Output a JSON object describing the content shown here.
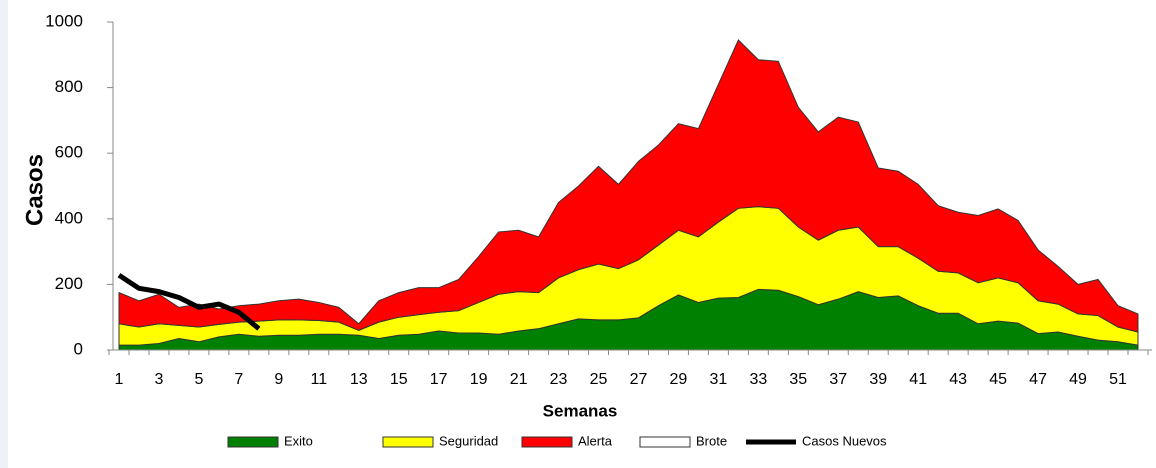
{
  "chart_data": {
    "type": "stacked_area",
    "xlabel": "Semanas",
    "ylabel": "Casos",
    "categories": [
      1,
      null,
      3,
      null,
      5,
      null,
      7,
      null,
      9,
      null,
      11,
      null,
      13,
      null,
      15,
      null,
      17,
      null,
      19,
      null,
      21,
      null,
      23,
      null,
      25,
      null,
      27,
      null,
      29,
      null,
      31,
      null,
      33,
      null,
      35,
      null,
      37,
      null,
      39,
      null,
      41,
      null,
      43,
      null,
      45,
      null,
      47,
      null,
      49,
      null,
      51,
      null
    ],
    "ylim": [
      0,
      1000
    ],
    "yticks": [
      0,
      200,
      400,
      600,
      800,
      1000
    ],
    "series": [
      {
        "name": "Exito",
        "color": "#008000",
        "values": [
          15,
          15,
          20,
          35,
          25,
          40,
          48,
          42,
          45,
          45,
          48,
          48,
          45,
          35,
          45,
          48,
          58,
          52,
          52,
          48,
          58,
          65,
          80,
          95,
          92,
          92,
          98,
          135,
          168,
          145,
          158,
          160,
          185,
          182,
          163,
          138,
          155,
          178,
          160,
          165,
          135,
          112,
          112,
          80,
          88,
          82,
          50,
          55,
          42,
          30,
          25,
          15
        ]
      },
      {
        "name": "Seguridad",
        "color": "#ffff00",
        "values": [
          65,
          55,
          60,
          40,
          45,
          38,
          37,
          46,
          47,
          47,
          42,
          37,
          15,
          50,
          55,
          60,
          57,
          68,
          93,
          122,
          120,
          110,
          140,
          150,
          170,
          156,
          177,
          185,
          197,
          200,
          232,
          272,
          252,
          250,
          212,
          197,
          210,
          197,
          155,
          150,
          145,
          128,
          123,
          125,
          132,
          123,
          100,
          85,
          68,
          75,
          45,
          40
        ]
      },
      {
        "name": "Alerta",
        "color": "#ff0000",
        "values": [
          95,
          80,
          90,
          55,
          70,
          47,
          50,
          52,
          58,
          63,
          55,
          45,
          20,
          65,
          75,
          82,
          75,
          95,
          140,
          190,
          187,
          170,
          230,
          255,
          298,
          257,
          300,
          305,
          325,
          330,
          420,
          513,
          448,
          448,
          365,
          330,
          345,
          320,
          240,
          230,
          225,
          200,
          185,
          205,
          210,
          190,
          155,
          115,
          90,
          110,
          65,
          55
        ]
      },
      {
        "name": "Brote",
        "color": "#ffffff",
        "values": [
          null,
          null,
          null,
          null,
          null,
          null,
          null,
          null,
          null,
          null,
          null,
          null,
          null,
          null,
          null,
          null,
          null,
          null,
          null,
          null,
          null,
          null,
          null,
          null,
          null,
          null,
          null,
          null,
          null,
          null,
          null,
          null,
          null,
          null,
          null,
          null,
          null,
          null,
          null,
          null,
          null,
          null,
          null,
          null,
          null,
          null,
          null,
          null,
          null,
          null,
          null,
          null
        ]
      },
      {
        "name": "Casos Nuevos",
        "color": "#000000",
        "line": true,
        "values": [
          228,
          188,
          178,
          160,
          130,
          140,
          115,
          65,
          null,
          null,
          null,
          null,
          null,
          null,
          null,
          null,
          null,
          null,
          null,
          null,
          null,
          null,
          null,
          null,
          null,
          null,
          null,
          null,
          null,
          null,
          null,
          null,
          null,
          null,
          null,
          null,
          null,
          null,
          null,
          null,
          null,
          null,
          null,
          null,
          null,
          null,
          null,
          null,
          null,
          null,
          null,
          null
        ]
      }
    ]
  }
}
